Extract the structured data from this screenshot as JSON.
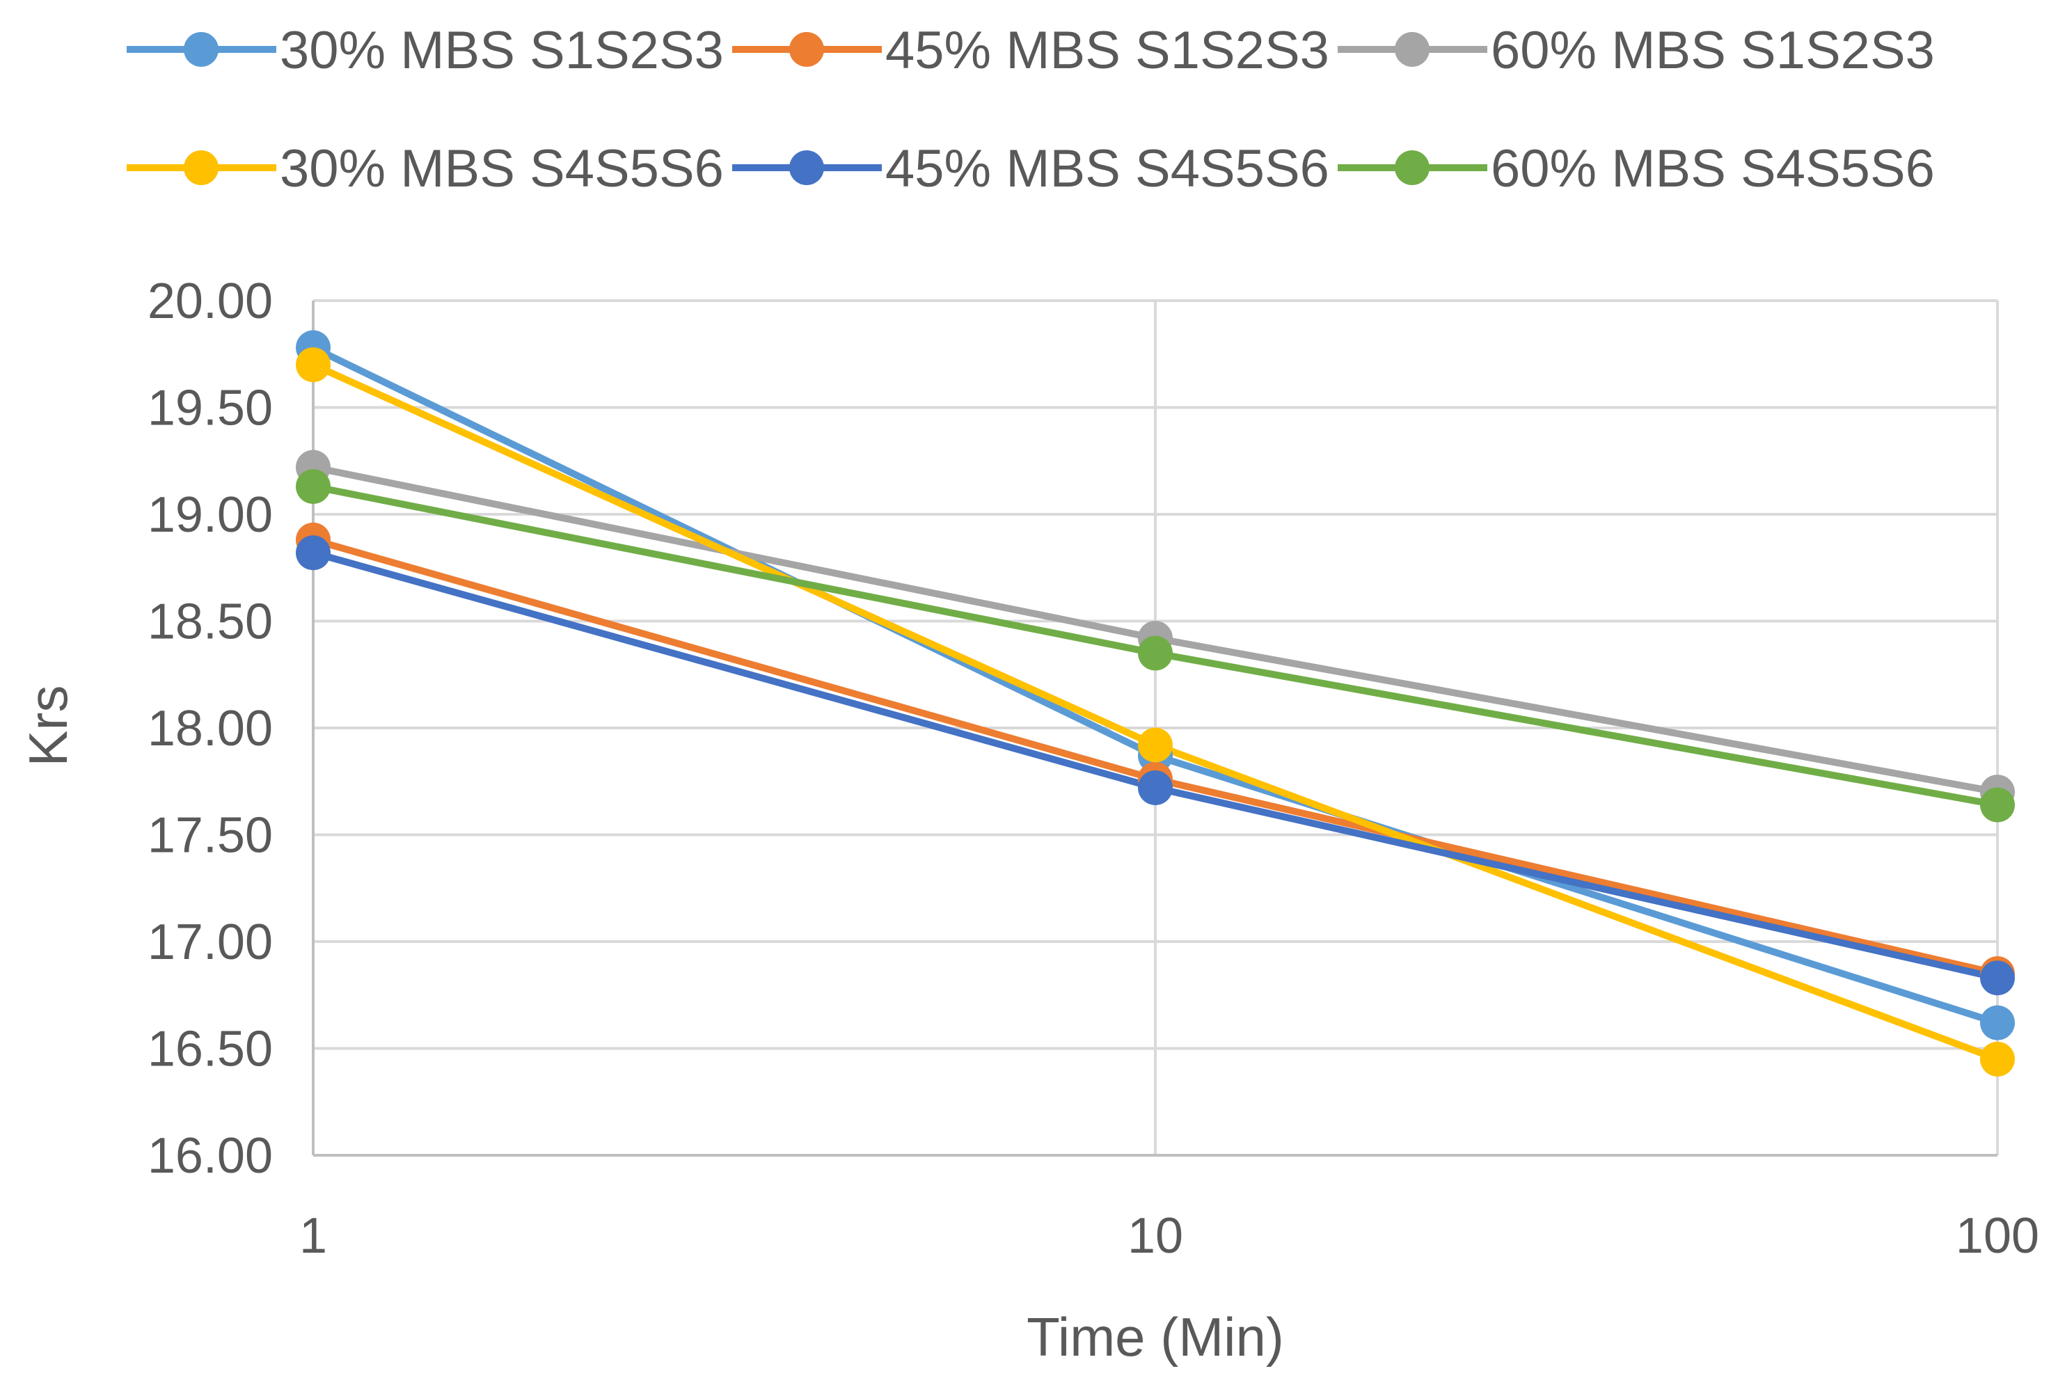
{
  "chart_data": {
    "type": "line",
    "xscale": "log",
    "title": "",
    "xlabel": "Time (Min)",
    "ylabel": "Krs",
    "x": [
      1,
      10,
      100
    ],
    "xtick_labels": [
      "1",
      "10",
      "100"
    ],
    "ylim": [
      16.0,
      20.0
    ],
    "yticks": [
      16.0,
      16.5,
      17.0,
      17.5,
      18.0,
      18.5,
      19.0,
      19.5,
      20.0
    ],
    "ytick_labels": [
      "16.00",
      "16.50",
      "17.00",
      "17.50",
      "18.00",
      "18.50",
      "19.00",
      "19.50",
      "20.00"
    ],
    "grid": true,
    "legend_position": "top",
    "series": [
      {
        "name": "30% MBS S1S2S3",
        "color": "#5B9BD5",
        "values": [
          19.78,
          17.87,
          16.62
        ]
      },
      {
        "name": "45% MBS S1S2S3",
        "color": "#ED7D31",
        "values": [
          18.88,
          17.76,
          16.85
        ]
      },
      {
        "name": "60% MBS S1S2S3",
        "color": "#A5A5A5",
        "values": [
          19.22,
          18.42,
          17.7
        ]
      },
      {
        "name": "30% MBS S4S5S6",
        "color": "#FFC000",
        "values": [
          19.7,
          17.92,
          16.45
        ]
      },
      {
        "name": "45% MBS S4S5S6",
        "color": "#4472C4",
        "values": [
          18.82,
          17.72,
          16.83
        ]
      },
      {
        "name": "60% MBS S4S5S6",
        "color": "#70AD47",
        "values": [
          19.13,
          18.35,
          17.64
        ]
      }
    ]
  }
}
